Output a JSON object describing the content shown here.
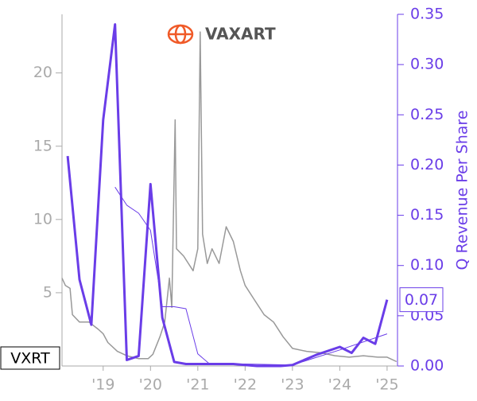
{
  "chart_data": {
    "type": "line",
    "logo_text": "VAXART",
    "ticker_label": "VXRT",
    "last_value_label": "0.07",
    "y2_label": "Q Revenue Per Share",
    "xlim": [
      2018.13,
      2025.22
    ],
    "xticks": [
      {
        "value": 2019,
        "label": "'19"
      },
      {
        "value": 2020,
        "label": "'20"
      },
      {
        "value": 2021,
        "label": "'21"
      },
      {
        "value": 2022,
        "label": "'22"
      },
      {
        "value": 2023,
        "label": "'23"
      },
      {
        "value": 2024,
        "label": "'24"
      },
      {
        "value": 2025,
        "label": "'25"
      }
    ],
    "ylim": [
      0,
      24
    ],
    "yticks": [
      5,
      10,
      15,
      20
    ],
    "y2lim": [
      0,
      0.35
    ],
    "y2ticks": [
      {
        "value": 0,
        "label": "0.00"
      },
      0.05,
      {
        "value": 0.1,
        "label": "0.10"
      },
      0.15,
      {
        "value": 0.2,
        "label": "0.20"
      },
      0.25,
      {
        "value": 0.3,
        "label": "0.30"
      },
      0.35
    ],
    "series": [
      {
        "color": "#999999",
        "width": 1.5,
        "x": [
          2018.13,
          2018.2,
          2018.3,
          2018.35,
          2018.5,
          2018.7,
          2018.9,
          2019.0,
          2019.1,
          2019.3,
          2019.5,
          2019.75,
          2019.95,
          2020.05,
          2020.2,
          2020.3,
          2020.4,
          2020.45,
          2020.52,
          2020.55,
          2020.7,
          2020.9,
          2021.0,
          2021.05,
          2021.1,
          2021.2,
          2021.3,
          2021.45,
          2021.6,
          2021.75,
          2021.9,
          2022.0,
          2022.2,
          2022.4,
          2022.6,
          2022.8,
          2023.0,
          2023.3,
          2023.6,
          2023.9,
          2024.2,
          2024.5,
          2024.8,
          2025.0,
          2025.2
        ],
        "values": [
          6,
          5.5,
          5.3,
          3.5,
          3.0,
          3.0,
          2.5,
          2.2,
          1.6,
          1.0,
          0.7,
          0.5,
          0.5,
          0.8,
          2.0,
          3.0,
          6.0,
          4.0,
          16.8,
          8,
          7.5,
          6.5,
          8,
          22.8,
          9,
          7,
          8,
          7,
          9.5,
          8.5,
          6.5,
          5.5,
          4.5,
          3.5,
          3.0,
          2.0,
          1.2,
          1.0,
          0.9,
          0.7,
          0.6,
          0.7,
          0.6,
          0.6,
          0.3
        ]
      },
      {
        "color": "#6a3de8",
        "width": 1,
        "axis": "y2",
        "x": [
          2019.25,
          2019.5,
          2019.75,
          2020.0,
          2020.25,
          2020.5,
          2020.75,
          2021.0,
          2021.25,
          2021.5,
          2021.75,
          2022.0,
          2023.0,
          2024.0,
          2025.0
        ],
        "values": [
          0.178,
          0.16,
          0.152,
          0.135,
          0.059,
          0.059,
          0.057,
          0.012,
          0.002,
          0.002,
          0.002,
          0.002,
          0.001,
          0.016,
          0.032
        ]
      },
      {
        "color": "#6a3de8",
        "width": 3,
        "axis": "y2",
        "x": [
          2018.25,
          2018.5,
          2018.75,
          2019.0,
          2019.25,
          2019.5,
          2019.75,
          2020.0,
          2020.25,
          2020.5,
          2020.75,
          2021.0,
          2021.25,
          2021.5,
          2021.75,
          2022.0,
          2022.25,
          2022.5,
          2022.75,
          2023.0,
          2023.25,
          2023.5,
          2023.75,
          2024.0,
          2024.25,
          2024.5,
          2024.75,
          2025.0
        ],
        "values": [
          0.209,
          0.086,
          0.041,
          0.245,
          0.34,
          0.006,
          0.01,
          0.181,
          0.048,
          0.004,
          0.002,
          0.002,
          0.002,
          0.002,
          0.002,
          0.001,
          0,
          0,
          0,
          0.001,
          0.006,
          0.011,
          0.015,
          0.019,
          0.013,
          0.028,
          0.022,
          0.066
        ]
      }
    ]
  }
}
